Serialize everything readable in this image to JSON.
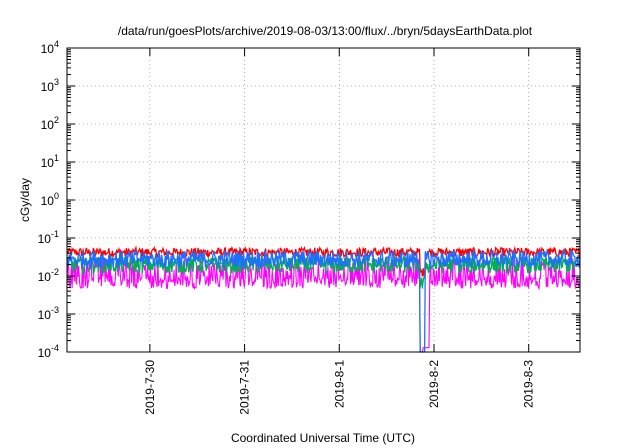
{
  "chart_data": {
    "type": "line",
    "title": "/data/run/goesPlots/archive/2019-08-03/13:00/flux/../bryn/5daysEarthData.plot",
    "xlabel": "Coordinated Universal Time (UTC)",
    "ylabel": "cGy/day",
    "y_scale": "log",
    "ylim": [
      0.0001,
      10000
    ],
    "xlim": [
      "2019-07-29T03:00",
      "2019-08-03T13:00"
    ],
    "y_ticks": [
      {
        "value": 0.0001,
        "base": "10",
        "exp": "-4"
      },
      {
        "value": 0.001,
        "base": "10",
        "exp": "-3"
      },
      {
        "value": 0.01,
        "base": "10",
        "exp": "-2"
      },
      {
        "value": 0.1,
        "base": "10",
        "exp": "-1"
      },
      {
        "value": 1,
        "base": "10",
        "exp": "0"
      },
      {
        "value": 10,
        "base": "10",
        "exp": "1"
      },
      {
        "value": 100,
        "base": "10",
        "exp": "2"
      },
      {
        "value": 1000,
        "base": "10",
        "exp": "3"
      },
      {
        "value": 10000,
        "base": "10",
        "exp": "4"
      }
    ],
    "x_ticks": [
      {
        "label": "2019-7-30",
        "time": "2019-07-30T00:00"
      },
      {
        "label": "2019-7-31",
        "time": "2019-07-31T00:00"
      },
      {
        "label": "2019-8-1",
        "time": "2019-08-01T00:00"
      },
      {
        "label": "2019-8-2",
        "time": "2019-08-02T00:00"
      },
      {
        "label": "2019-8-3",
        "time": "2019-08-03T00:00"
      }
    ],
    "grid": true,
    "series": [
      {
        "color": "#ff0000",
        "approx_level": 0.042,
        "approx_range": [
          0.03,
          0.06
        ]
      },
      {
        "color": "#1e6fff",
        "approx_level": 0.028,
        "approx_range": [
          0.012,
          0.045
        ]
      },
      {
        "color": "#00b050",
        "approx_level": 0.02,
        "approx_range": [
          0.008,
          0.03
        ]
      },
      {
        "color": "#ff00ff",
        "approx_level": 0.007,
        "approx_range": [
          0.003,
          0.03
        ]
      }
    ],
    "annotations": [
      {
        "time": "2019-08-01T21:00",
        "description": "dropout",
        "min_value": 0.0001
      }
    ]
  }
}
